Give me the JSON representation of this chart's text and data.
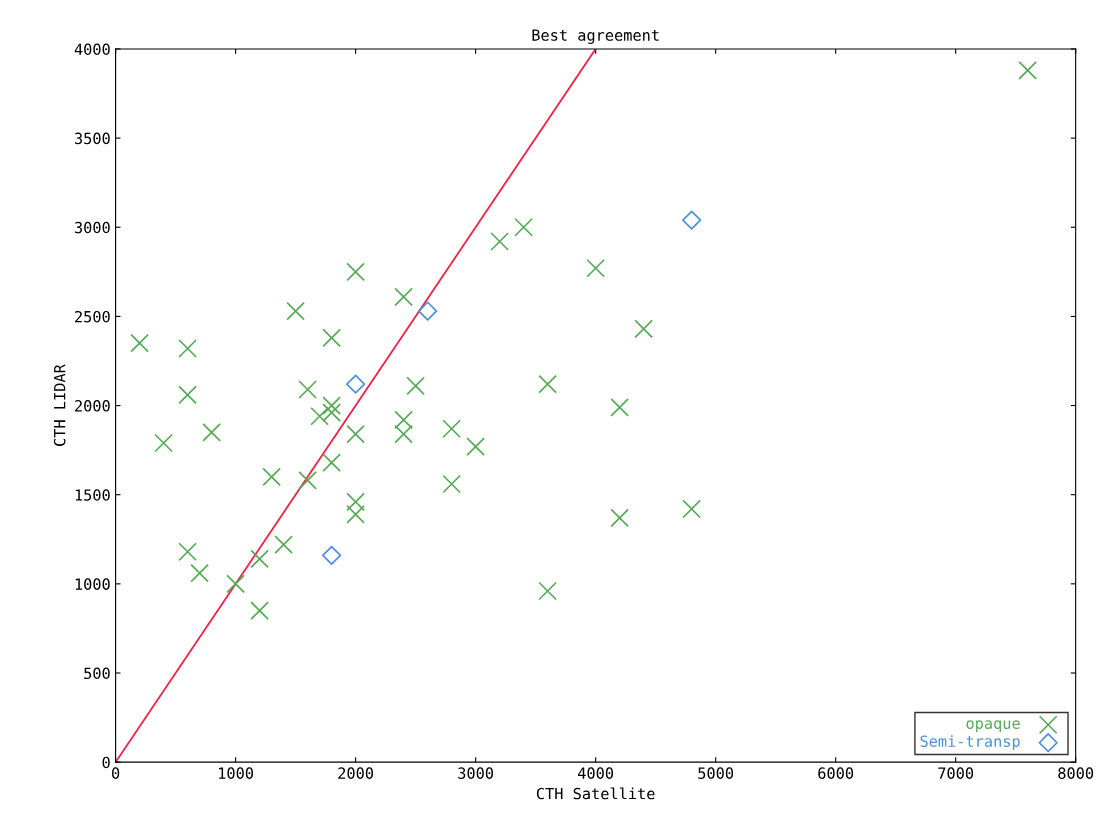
{
  "chart_data": {
    "type": "scatter",
    "title": "Best agreement",
    "xlabel": "CTH Satellite",
    "ylabel": "CTH LIDAR",
    "xlim": [
      0,
      8000
    ],
    "ylim": [
      0,
      4000
    ],
    "xticks": [
      0,
      1000,
      2000,
      3000,
      4000,
      5000,
      6000,
      7000,
      8000
    ],
    "yticks": [
      0,
      500,
      1000,
      1500,
      2000,
      2500,
      3000,
      3500,
      4000
    ],
    "grid": false,
    "legend": "bottom right",
    "series": [
      {
        "name": "opaque",
        "color": "#55aa55",
        "marker": "cross",
        "x": [
          200,
          600,
          600,
          400,
          800,
          600,
          700,
          1000,
          1200,
          1200,
          1300,
          1400,
          1500,
          1600,
          1600,
          1700,
          1800,
          1800,
          1800,
          1800,
          2000,
          2000,
          2000,
          2000,
          2400,
          2400,
          2400,
          2500,
          2800,
          2800,
          3000,
          3200,
          3400,
          3600,
          3600,
          4000,
          4200,
          4200,
          4400,
          4800,
          7600
        ],
        "values": [
          2350,
          2320,
          2060,
          1790,
          1850,
          1180,
          1060,
          1000,
          1140,
          850,
          1600,
          1220,
          2530,
          2090,
          1580,
          1940,
          2000,
          1960,
          2380,
          1680,
          1840,
          2750,
          1460,
          1390,
          2610,
          1920,
          1840,
          2110,
          1870,
          1560,
          1770,
          2920,
          3000,
          2120,
          960,
          2770,
          1990,
          1370,
          2430,
          1420,
          3880
        ]
      },
      {
        "name": "Semi-transp",
        "color": "#4a90d9",
        "marker": "diamond",
        "x": [
          1800,
          2000,
          2600,
          4800
        ],
        "values": [
          1160,
          2120,
          2530,
          3040
        ]
      },
      {
        "type": "line",
        "color": "#ee2244",
        "marker": "none",
        "x": [
          0,
          4000
        ],
        "values": [
          0,
          4000
        ]
      }
    ]
  }
}
